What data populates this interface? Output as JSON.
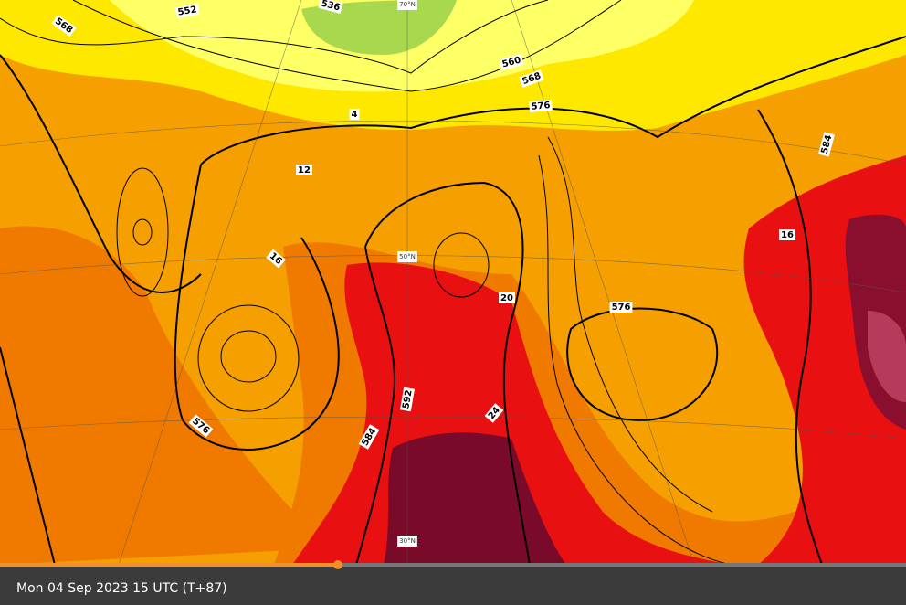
{
  "map": {
    "contour_labels": [
      568,
      552,
      536,
      560,
      568,
      576,
      584,
      576,
      576,
      584,
      592
    ],
    "minor_labels": [
      4,
      12,
      16,
      16,
      20,
      24
    ],
    "latitude_labels": [
      "70°N",
      "50°N",
      "30°N"
    ]
  },
  "footer": {
    "timestamp": "Mon 04 Sep 2023 15 UTC (T+87)"
  }
}
